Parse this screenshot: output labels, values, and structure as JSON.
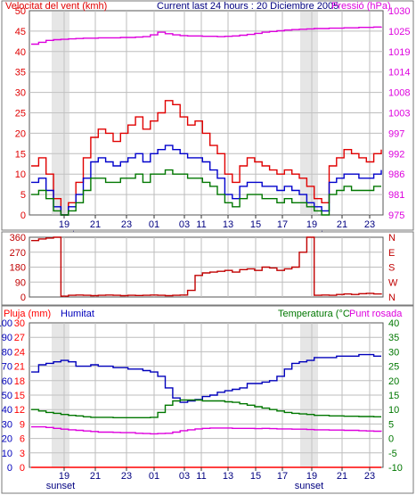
{
  "colors": {
    "wind_gust": "#e00000",
    "wind_avg": "#0000cc",
    "wind_min": "#007700",
    "pressure": "#dd00dd",
    "direction": "#c00000",
    "rain": "#ff0000",
    "humidity": "#0000bb",
    "temperature": "#007700",
    "dewpoint": "#dd00dd",
    "sunset": "#c8c8c8"
  },
  "header": {
    "title": "Current last 24 hours : 20 Diciembre 2005"
  },
  "chart_data": [
    {
      "type": "line",
      "title": "Current last 24 hours : 20 Diciembre 2005",
      "x_labels": [
        "19",
        "21",
        "23",
        "01",
        "03",
        "11",
        "13",
        "15",
        "17",
        "19",
        "21",
        "23"
      ],
      "sunset_labels": [
        "sunset",
        "sunset"
      ],
      "y_left_label": "Velocitat del vent (kmh)",
      "y_left_ticks": [
        "0",
        "5",
        "10",
        "15",
        "20",
        "25",
        "30",
        "35",
        "40",
        "45",
        "50"
      ],
      "y_left_range": [
        0,
        50
      ],
      "y_right_label": "Pressió (hPa)",
      "y_right_ticks": [
        "975",
        "981",
        "986",
        "992",
        "997",
        "1003",
        "1008",
        "1014",
        "1019",
        "1025",
        "1030"
      ],
      "y_right_range": [
        975,
        1030
      ],
      "grid": true,
      "series": [
        {
          "name": "Velocitat del vent (kmh)",
          "color_key": "wind_gust",
          "values": [
            12,
            14,
            10,
            4,
            0,
            3,
            8,
            14,
            19,
            21,
            20,
            18,
            20,
            22,
            24,
            21,
            23,
            25,
            28,
            27,
            24,
            22,
            23,
            20,
            17,
            15,
            10,
            8,
            12,
            14,
            13,
            12,
            11,
            10,
            11,
            10,
            9,
            7,
            4,
            3,
            12,
            14,
            16,
            15,
            14,
            13,
            15,
            16
          ]
        },
        {
          "color_key": "wind_avg",
          "values": [
            8,
            9,
            6,
            2,
            0,
            2,
            5,
            9,
            13,
            14,
            13,
            12,
            13,
            14,
            15,
            13,
            15,
            16,
            17,
            16,
            15,
            14,
            14,
            13,
            11,
            9,
            5,
            4,
            7,
            8,
            8,
            7,
            7,
            6,
            7,
            6,
            5,
            3,
            2,
            1,
            8,
            9,
            10,
            10,
            9,
            9,
            10,
            11
          ]
        },
        {
          "color_key": "wind_min",
          "values": [
            5,
            6,
            4,
            1,
            0,
            1,
            3,
            6,
            9,
            9,
            8,
            8,
            9,
            9,
            10,
            8,
            10,
            10,
            11,
            10,
            10,
            9,
            9,
            8,
            7,
            5,
            3,
            2,
            4,
            5,
            5,
            4,
            4,
            3,
            4,
            3,
            3,
            2,
            1,
            0,
            5,
            6,
            7,
            6,
            6,
            6,
            7,
            7
          ]
        },
        {
          "name": "Pressió (hPa)",
          "color_key": "pressure",
          "axis": "right",
          "values": [
            1021,
            1021.5,
            1022,
            1022.2,
            1022.3,
            1022.4,
            1022.5,
            1022.6,
            1022.6,
            1022.7,
            1022.7,
            1022.7,
            1022.8,
            1022.8,
            1022.9,
            1023,
            1023.5,
            1024.2,
            1023.8,
            1023.5,
            1023.3,
            1023.2,
            1023.2,
            1023.1,
            1023.1,
            1023,
            1023.1,
            1023.2,
            1023.4,
            1023.6,
            1023.9,
            1024.2,
            1024.4,
            1024.6,
            1024.8,
            1024.9,
            1025,
            1025.1,
            1025.2,
            1025.2,
            1025.3,
            1025.3,
            1025.4,
            1025.4,
            1025.5,
            1025.5,
            1025.6,
            1025.7
          ]
        }
      ]
    },
    {
      "type": "line",
      "y_left_ticks": [
        "0",
        "90",
        "180",
        "270",
        "360"
      ],
      "y_left_range": [
        0,
        360
      ],
      "y_right_ticks": [
        "N",
        "W",
        "S",
        "E",
        "N"
      ],
      "grid": true,
      "series": [
        {
          "color_key": "direction",
          "values": [
            340,
            350,
            355,
            360,
            5,
            10,
            12,
            10,
            8,
            10,
            12,
            10,
            8,
            10,
            9,
            10,
            12,
            10,
            8,
            10,
            12,
            40,
            130,
            145,
            150,
            155,
            160,
            150,
            165,
            170,
            160,
            180,
            175,
            160,
            170,
            180,
            270,
            360,
            10,
            12,
            10,
            15,
            18,
            15,
            20,
            22,
            18,
            15
          ]
        }
      ]
    },
    {
      "type": "line",
      "x_labels": [
        "19",
        "21",
        "23",
        "01",
        "03",
        "11",
        "13",
        "15",
        "17",
        "19",
        "21",
        "23"
      ],
      "sunset_labels": [
        "sunset",
        "sunset"
      ],
      "y_left_label": "Pluja (mm)",
      "y_left_ticks": [
        "0",
        "3",
        "6",
        "9",
        "12",
        "15",
        "18",
        "21",
        "24",
        "27",
        "30"
      ],
      "y_left_range": [
        0,
        30
      ],
      "y_left2_label": "Humitat",
      "y_left2_ticks": [
        "0",
        "10",
        "20",
        "30",
        "40",
        "50",
        "60",
        "70",
        "80",
        "90",
        "100"
      ],
      "y_left2_range": [
        0,
        100
      ],
      "y_right_label": "Temperatura (°C",
      "y_right_label2": "Punt rosada",
      "y_right_ticks": [
        "-10",
        "-5",
        "0",
        "5",
        "10",
        "15",
        "20",
        "25",
        "30",
        "35",
        "40"
      ],
      "y_right_range": [
        -10,
        40
      ],
      "grid": true,
      "series": [
        {
          "name": "Pluja (mm)",
          "color_key": "rain",
          "axis": "left",
          "values": [
            0,
            0,
            0,
            0,
            0,
            0,
            0,
            0,
            0,
            0,
            0,
            0,
            0,
            0,
            0,
            0,
            0,
            0,
            0,
            0,
            0,
            0,
            0,
            0,
            0,
            0,
            0,
            0,
            0,
            0,
            0,
            0,
            0,
            0,
            0,
            0,
            0,
            0,
            0,
            0,
            0,
            0,
            0,
            0,
            0,
            0,
            0,
            0
          ]
        },
        {
          "name": "Humitat",
          "color_key": "humidity",
          "axis": "left2",
          "values": [
            66,
            71,
            72,
            73,
            74,
            73,
            70,
            70,
            71,
            70,
            70,
            69,
            69,
            68,
            68,
            67,
            66,
            63,
            55,
            48,
            45,
            46,
            47,
            49,
            50,
            52,
            53,
            54,
            55,
            58,
            58,
            59,
            60,
            63,
            68,
            72,
            73,
            74,
            76,
            76,
            76,
            77,
            77,
            77,
            78,
            78,
            77,
            77
          ]
        },
        {
          "name": "Temperatura (°C",
          "color_key": "temperature",
          "axis": "right",
          "values": [
            10,
            9.5,
            9,
            8.7,
            8.3,
            8,
            7.8,
            7.5,
            7.3,
            7.3,
            7.3,
            7.2,
            7.2,
            7.2,
            7.2,
            7.2,
            7.3,
            9,
            11.5,
            13,
            13.3,
            13.3,
            13.3,
            13,
            13,
            13,
            12.7,
            12.5,
            12,
            11.5,
            11,
            10.5,
            10,
            9.5,
            9,
            8.7,
            8.5,
            8.3,
            8,
            8,
            7.8,
            7.8,
            7.7,
            7.7,
            7.6,
            7.6,
            7.5,
            7.5
          ]
        },
        {
          "name": "Punt rosada",
          "color_key": "dewpoint",
          "axis": "right",
          "values": [
            4,
            4,
            3.8,
            3.5,
            3.2,
            3,
            2.8,
            2.6,
            2.4,
            2.2,
            2.2,
            2.1,
            2,
            2,
            1.8,
            1.7,
            1.6,
            1.7,
            1.8,
            2.2,
            2.7,
            3,
            3.3,
            3.5,
            3.6,
            3.6,
            3.6,
            3.5,
            3.5,
            3.5,
            3.4,
            3.5,
            3.4,
            3.3,
            3.3,
            3.2,
            3.2,
            3.1,
            3,
            3,
            2.9,
            2.9,
            2.8,
            2.8,
            2.7,
            2.6,
            2.5,
            2.4
          ]
        }
      ]
    }
  ]
}
